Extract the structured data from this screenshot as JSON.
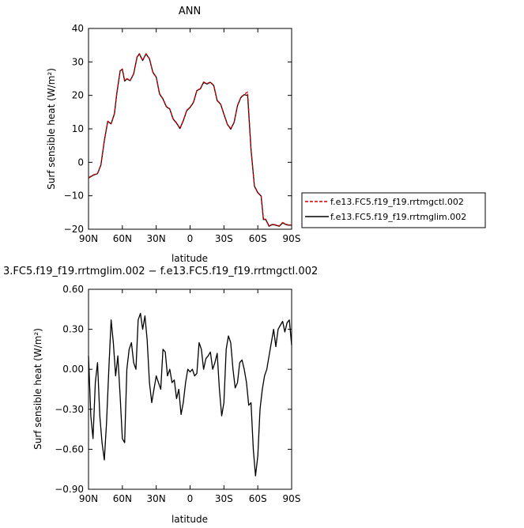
{
  "chart_data": [
    {
      "type": "line",
      "title": "ANN",
      "xlabel": "latitude",
      "ylabel": "Surf sensible heat (W/m²)",
      "xlim": [
        90,
        -90
      ],
      "ylim": [
        -20,
        40
      ],
      "xticks": [
        90,
        60,
        30,
        0,
        -30,
        -60,
        -90
      ],
      "xtick_labels": [
        "90N",
        "60N",
        "30N",
        "0",
        "30S",
        "60S",
        "90S"
      ],
      "yticks": [
        -20,
        -10,
        0,
        10,
        20,
        30,
        40
      ],
      "ytick_labels": [
        "−20",
        "−10",
        "0",
        "10",
        "20",
        "30",
        "40"
      ],
      "legend_position": "right",
      "series": [
        {
          "name": "f.e13.FC5.f19_f19.rrtmgctl.002",
          "color": "#cc0000",
          "dash": "dashed",
          "x": [
            90,
            86,
            82,
            79,
            76,
            73,
            70,
            67,
            65,
            62,
            60,
            58,
            56,
            53,
            50,
            47,
            45,
            42,
            39,
            36,
            33,
            30,
            27,
            24,
            21,
            18,
            15,
            12,
            9,
            6,
            3,
            0,
            -3,
            -6,
            -9,
            -12,
            -15,
            -18,
            -21,
            -24,
            -27,
            -30,
            -33,
            -36,
            -39,
            -42,
            -45,
            -48,
            -51,
            -54,
            -57,
            -60,
            -63,
            -65,
            -67,
            -70,
            -73,
            -76,
            -79,
            -82,
            -85,
            -87,
            -90
          ],
          "y": [
            -4.6,
            -3.8,
            -3.3,
            -0.7,
            6.5,
            12.3,
            11.6,
            14.6,
            20.5,
            27.4,
            27.9,
            24.4,
            25.0,
            24.5,
            26.5,
            31.5,
            32.5,
            30.5,
            32.5,
            31.0,
            27.0,
            25.5,
            20.5,
            19.0,
            16.7,
            16.0,
            13.0,
            11.8,
            10.2,
            12.5,
            15.5,
            16.5,
            18.0,
            21.5,
            22.0,
            24.0,
            23.5,
            24.0,
            23.0,
            18.5,
            17.5,
            14.5,
            11.5,
            10.0,
            12.0,
            17.0,
            19.5,
            20.3,
            21.0,
            4.0,
            -7.0,
            -9.0,
            -10.0,
            -17.0,
            -17.0,
            -19.0,
            -18.5,
            -18.7,
            -19.0,
            -18.0,
            -18.5,
            -18.7,
            -18.7
          ]
        },
        {
          "name": "f.e13.FC5.f19_f19.rrtmglim.002",
          "color": "#000000",
          "dash": "solid",
          "x": [
            90,
            86,
            82,
            79,
            76,
            73,
            70,
            67,
            65,
            62,
            60,
            58,
            56,
            53,
            50,
            47,
            45,
            42,
            39,
            36,
            33,
            30,
            27,
            24,
            21,
            18,
            15,
            12,
            9,
            6,
            3,
            0,
            -3,
            -6,
            -9,
            -12,
            -15,
            -18,
            -21,
            -24,
            -27,
            -30,
            -33,
            -36,
            -39,
            -42,
            -45,
            -48,
            -51,
            -54,
            -57,
            -60,
            -63,
            -65,
            -67,
            -70,
            -73,
            -76,
            -79,
            -82,
            -85,
            -87,
            -90
          ],
          "y": [
            -4.7,
            -3.9,
            -3.4,
            -0.8,
            6.4,
            12.2,
            11.5,
            14.5,
            20.4,
            27.3,
            27.8,
            24.3,
            24.9,
            24.4,
            26.4,
            31.4,
            32.4,
            30.4,
            32.4,
            30.9,
            26.9,
            25.4,
            20.4,
            18.9,
            16.6,
            15.9,
            12.9,
            11.7,
            10.1,
            12.4,
            15.4,
            16.4,
            17.9,
            21.4,
            21.9,
            23.9,
            23.4,
            23.9,
            22.9,
            18.4,
            17.4,
            14.4,
            11.4,
            9.9,
            11.9,
            16.9,
            19.4,
            20.2,
            20.0,
            3.8,
            -7.1,
            -9.1,
            -10.1,
            -17.1,
            -17.1,
            -19.1,
            -18.6,
            -18.8,
            -19.1,
            -18.1,
            -18.6,
            -18.8,
            -18.8
          ]
        }
      ]
    },
    {
      "type": "line",
      "title": "3.FC5.f19_f19.rrtmglim.002 − f.e13.FC5.f19_f19.rrtmgctl.002",
      "xlabel": "latitude",
      "ylabel": "Surf sensible heat (W/m²)",
      "xlim": [
        90,
        -90
      ],
      "ylim": [
        -0.9,
        0.6
      ],
      "xticks": [
        90,
        60,
        30,
        0,
        -30,
        -60,
        -90
      ],
      "xtick_labels": [
        "90N",
        "60N",
        "30N",
        "0",
        "30S",
        "60S",
        "90S"
      ],
      "yticks": [
        -0.9,
        -0.6,
        -0.3,
        0.0,
        0.3,
        0.6
      ],
      "ytick_labels": [
        "−0.90",
        "−0.60",
        "−0.30",
        "0.00",
        "0.30",
        "0.60"
      ],
      "series": [
        {
          "color": "#000000",
          "dash": "solid",
          "x": [
            90,
            88,
            86,
            84,
            82,
            80,
            78,
            76,
            74,
            72,
            70,
            68,
            66,
            64,
            62,
            60,
            58,
            56,
            54,
            52,
            50,
            48,
            46,
            44,
            42,
            40,
            38,
            36,
            34,
            32,
            30,
            28,
            26,
            24,
            22,
            20,
            18,
            16,
            14,
            12,
            10,
            8,
            6,
            4,
            2,
            0,
            -2,
            -4,
            -6,
            -8,
            -10,
            -12,
            -14,
            -16,
            -18,
            -20,
            -22,
            -24,
            -26,
            -28,
            -30,
            -32,
            -34,
            -36,
            -38,
            -40,
            -42,
            -44,
            -46,
            -48,
            -50,
            -52,
            -54,
            -56,
            -58,
            -60,
            -62,
            -64,
            -66,
            -68,
            -70,
            -72,
            -74,
            -76,
            -78,
            -80,
            -82,
            -84,
            -86,
            -88,
            -90
          ],
          "y": [
            0.1,
            -0.35,
            -0.52,
            -0.1,
            0.05,
            -0.35,
            -0.55,
            -0.68,
            -0.4,
            0.0,
            0.37,
            0.2,
            -0.05,
            0.1,
            -0.2,
            -0.52,
            -0.55,
            0.0,
            0.15,
            0.2,
            0.05,
            0.0,
            0.37,
            0.42,
            0.3,
            0.4,
            0.22,
            -0.1,
            -0.25,
            -0.15,
            -0.05,
            -0.1,
            -0.15,
            0.15,
            0.13,
            -0.05,
            0.0,
            -0.1,
            -0.08,
            -0.22,
            -0.15,
            -0.34,
            -0.25,
            -0.1,
            0.0,
            -0.02,
            0.0,
            -0.05,
            -0.03,
            0.2,
            0.15,
            0.0,
            0.08,
            0.1,
            0.13,
            0.0,
            0.05,
            0.12,
            -0.15,
            -0.35,
            -0.25,
            0.15,
            0.25,
            0.2,
            0.0,
            -0.14,
            -0.1,
            0.05,
            0.07,
            0.0,
            -0.1,
            -0.27,
            -0.25,
            -0.6,
            -0.8,
            -0.65,
            -0.3,
            -0.15,
            -0.05,
            0.0,
            0.1,
            0.2,
            0.3,
            0.17,
            0.3,
            0.33,
            0.36,
            0.28,
            0.35,
            0.37,
            0.18
          ]
        }
      ]
    }
  ]
}
